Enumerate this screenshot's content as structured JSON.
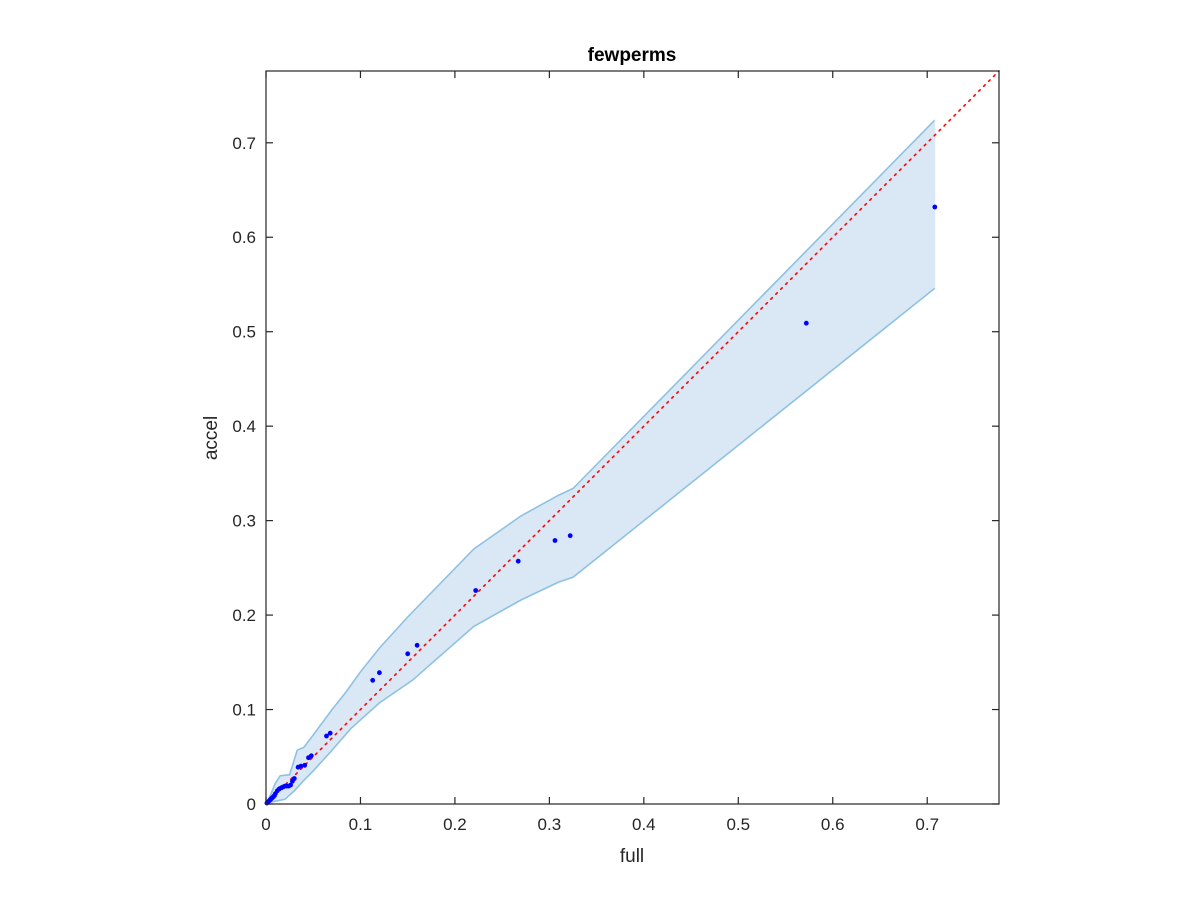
{
  "chart_data": {
    "type": "scatter",
    "title": "fewperms",
    "xlabel": "full",
    "ylabel": "accel",
    "xlim": [
      0,
      0.776
    ],
    "ylim": [
      0,
      0.776
    ],
    "xticks": [
      0,
      0.1,
      0.2,
      0.3,
      0.4,
      0.5,
      0.6,
      0.7
    ],
    "yticks": [
      0,
      0.1,
      0.2,
      0.3,
      0.4,
      0.5,
      0.6,
      0.7
    ],
    "xtick_labels": [
      "0",
      "0.1",
      "0.2",
      "0.3",
      "0.4",
      "0.5",
      "0.6",
      "0.7"
    ],
    "ytick_labels": [
      "0",
      "0.1",
      "0.2",
      "0.3",
      "0.4",
      "0.5",
      "0.6",
      "0.7"
    ],
    "grid": false,
    "reference_line": {
      "from": [
        0,
        0
      ],
      "to": [
        0.776,
        0.776
      ],
      "style": "dotted",
      "color": "#ff0000"
    },
    "band": {
      "fill": "#d9e8f4",
      "stroke": "#8ec1e2",
      "upper": [
        [
          0,
          0
        ],
        [
          0.005,
          0.01
        ],
        [
          0.01,
          0.022
        ],
        [
          0.015,
          0.03
        ],
        [
          0.025,
          0.031
        ],
        [
          0.03,
          0.047
        ],
        [
          0.033,
          0.057
        ],
        [
          0.04,
          0.06
        ],
        [
          0.05,
          0.073
        ],
        [
          0.07,
          0.1
        ],
        [
          0.085,
          0.119
        ],
        [
          0.1,
          0.14
        ],
        [
          0.12,
          0.165
        ],
        [
          0.15,
          0.198
        ],
        [
          0.22,
          0.27
        ],
        [
          0.27,
          0.305
        ],
        [
          0.31,
          0.327
        ],
        [
          0.325,
          0.334
        ],
        [
          0.708,
          0.724
        ]
      ],
      "lower": [
        [
          0,
          0
        ],
        [
          0.005,
          0.002
        ],
        [
          0.01,
          0.003
        ],
        [
          0.02,
          0.005
        ],
        [
          0.03,
          0.014
        ],
        [
          0.04,
          0.025
        ],
        [
          0.05,
          0.035
        ],
        [
          0.07,
          0.057
        ],
        [
          0.09,
          0.08
        ],
        [
          0.12,
          0.107
        ],
        [
          0.155,
          0.131
        ],
        [
          0.22,
          0.188
        ],
        [
          0.27,
          0.216
        ],
        [
          0.31,
          0.235
        ],
        [
          0.325,
          0.24
        ],
        [
          0.708,
          0.546
        ]
      ]
    },
    "points": {
      "color": "#0000ff",
      "x": [
        0.001,
        0.002,
        0.003,
        0.004,
        0.005,
        0.006,
        0.007,
        0.008,
        0.009,
        0.01,
        0.012,
        0.014,
        0.016,
        0.018,
        0.02,
        0.022,
        0.024,
        0.026,
        0.028,
        0.03,
        0.034,
        0.037,
        0.041,
        0.045,
        0.048,
        0.064,
        0.068,
        0.113,
        0.12,
        0.15,
        0.16,
        0.222,
        0.267,
        0.306,
        0.322,
        0.572,
        0.708
      ],
      "y": [
        0.001,
        0.002,
        0.003,
        0.004,
        0.005,
        0.006,
        0.007,
        0.008,
        0.009,
        0.011,
        0.014,
        0.016,
        0.017,
        0.018,
        0.019,
        0.019,
        0.019,
        0.02,
        0.024,
        0.027,
        0.039,
        0.04,
        0.041,
        0.049,
        0.051,
        0.072,
        0.075,
        0.131,
        0.139,
        0.159,
        0.168,
        0.226,
        0.257,
        0.279,
        0.284,
        0.509,
        0.632
      ]
    }
  }
}
